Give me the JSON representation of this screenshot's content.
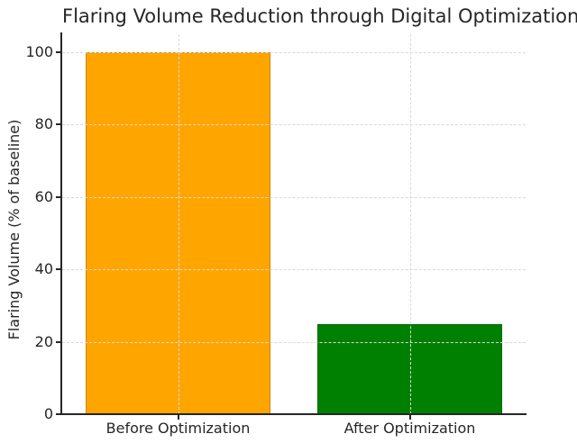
{
  "chart_data": {
    "type": "bar",
    "title": "Flaring Volume Reduction through Digital Optimization",
    "categories": [
      "Before Optimization",
      "After Optimization"
    ],
    "values": [
      100,
      25
    ],
    "bar_colors": [
      "#FFA500",
      "#008000"
    ],
    "xlabel": "",
    "ylabel": "Flaring Volume (% of baseline)",
    "ylim": [
      0,
      105
    ],
    "yticks": [
      0,
      20,
      40,
      60,
      80,
      100
    ],
    "grid": {
      "style": "dashed",
      "color": "#d9d9d9",
      "horizontal_at_yticks": true,
      "vertical_at_bar_centers": true,
      "drawn_over_bars": true
    },
    "legend": "none",
    "background_color": "#ffffff",
    "spine_color": "#262626",
    "text_color": "#262626",
    "spines_visible": [
      "left",
      "bottom"
    ]
  }
}
